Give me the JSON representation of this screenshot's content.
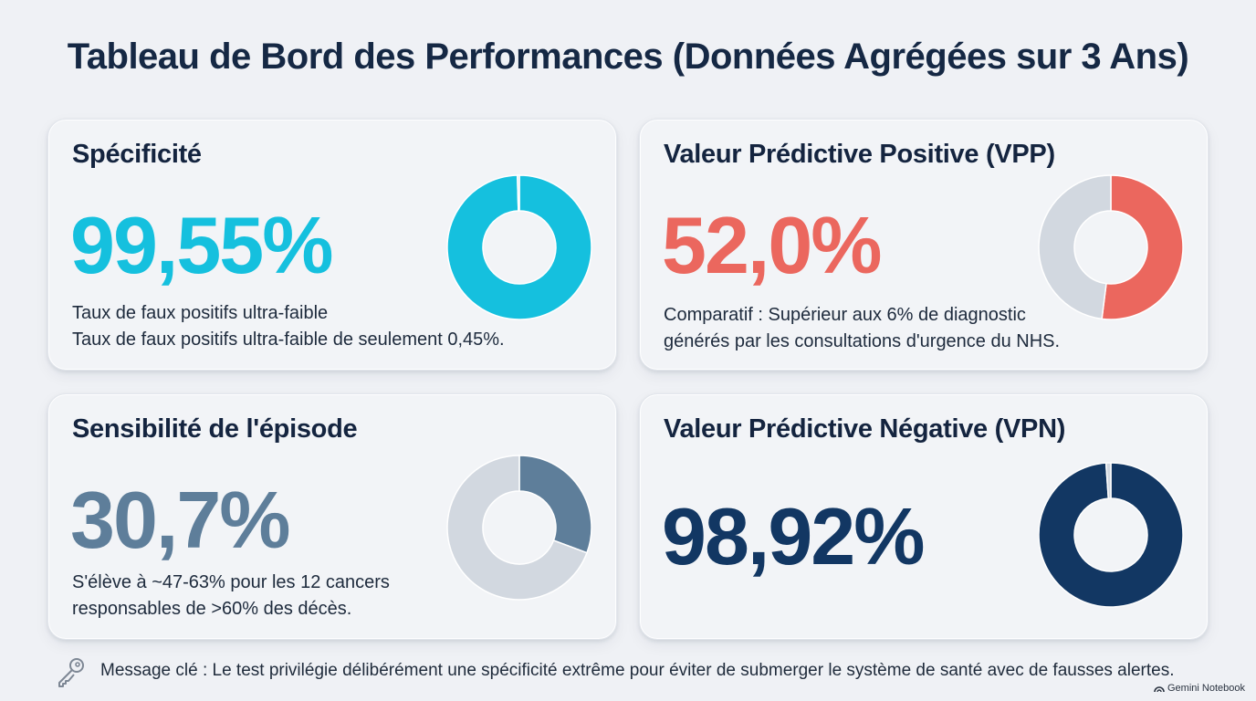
{
  "title": "Tableau de Bord des Performances (Données Agrégées sur 3 Ans)",
  "colors": {
    "specificity": "#15c0de",
    "vpp": "#eb675e",
    "sensitivity": "#5e7e9a",
    "vpn": "#123763",
    "remainder": "#d2d8e0"
  },
  "cards": [
    {
      "title": "Spécificité",
      "value": "99,55%",
      "notes": [
        "Taux de faux positifs ultra-faible",
        "Taux de faux positifs ultra-faible de seulement 0,45%."
      ]
    },
    {
      "title": "Valeur Prédictive Positive (VPP)",
      "value": "52,0%",
      "notes": [
        "Comparatif : Supérieur aux 6% de diagnostic",
        "générés par les consultations d'urgence du NHS."
      ]
    },
    {
      "title": "Sensibilité de l'épisode",
      "value": "30,7%",
      "notes": [
        "S'élève à ~47-63% pour les 12 cancers",
        "responsables de >60% des décès."
      ]
    },
    {
      "title": "Valeur Prédictive Négative (VPN)",
      "value": "98,92%",
      "notes": []
    }
  ],
  "chart_data": [
    {
      "type": "pie",
      "title": "Spécificité",
      "values": [
        99.55,
        0.45
      ]
    },
    {
      "type": "pie",
      "title": "Valeur Prédictive Positive (VPP)",
      "values": [
        52.0,
        48.0
      ]
    },
    {
      "type": "pie",
      "title": "Sensibilité de l'épisode",
      "values": [
        30.7,
        69.3
      ]
    },
    {
      "type": "pie",
      "title": "Valeur Prédictive Négative (VPN)",
      "values": [
        98.92,
        1.08
      ]
    }
  ],
  "footer": {
    "icon": "key-icon",
    "text": "Message clé : Le test privilégie délibérément une spécificité extrême pour éviter de submerger le système de santé avec de fausses alertes."
  },
  "watermark": "Gemini Notebook"
}
